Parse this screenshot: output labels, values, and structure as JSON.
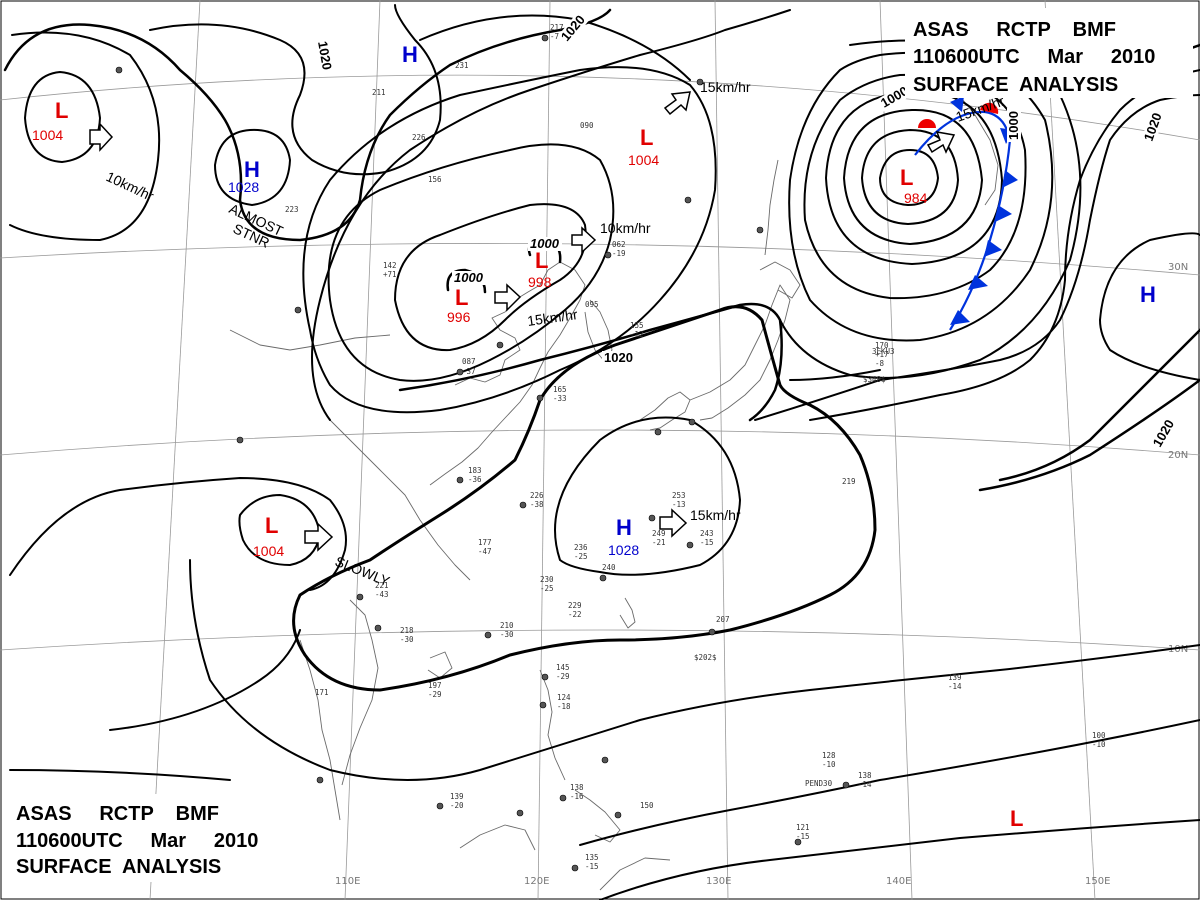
{
  "header_top": {
    "l1": "ASAS     RCTP    BMF",
    "l2": "110600UTC     Mar     2010",
    "l3": "SURFACE  ANALYSIS"
  },
  "header_bottom": {
    "l1": "ASAS     RCTP    BMF",
    "l2": "110600UTC     Mar     2010",
    "l3": "SURFACE  ANALYSIS"
  },
  "colors": {
    "low": "#e00000",
    "high": "#0000cc",
    "cold_front": "#0033dd",
    "warm_front": "#ee0000"
  },
  "lon_labels": [
    "110E",
    "120E",
    "130E",
    "140E",
    "150E"
  ],
  "lat_labels": [
    "30N",
    "20N",
    "10N"
  ],
  "pressure_centers": [
    {
      "type": "L",
      "value": "1004"
    },
    {
      "type": "H",
      "value": "1028"
    },
    {
      "type": "H",
      "value": ""
    },
    {
      "type": "L",
      "value": "1004"
    },
    {
      "type": "L",
      "value": "996"
    },
    {
      "type": "L",
      "value": "998"
    },
    {
      "type": "L",
      "value": "984"
    },
    {
      "type": "H",
      "value": ""
    },
    {
      "type": "L",
      "value": "1004"
    },
    {
      "type": "H",
      "value": "1028"
    },
    {
      "type": "L",
      "value": ""
    }
  ],
  "isobar_labels": [
    "1020",
    "1020",
    "1020",
    "1000",
    "1000",
    "1000",
    "1020",
    "1020",
    "1000"
  ],
  "motions": [
    "10km/hr",
    "15km/hr",
    "10km/hr",
    "15km/hr",
    "15km/hr",
    "SLOWLY",
    "15km/hr"
  ],
  "annotations": {
    "stnr_1": "ALMOST",
    "stnr_2": "STNR"
  },
  "station_texts": [
    "217",
    "-7",
    "231",
    "211",
    "226",
    "156",
    "223",
    "142",
    "+71",
    "090",
    "062",
    "-19",
    "095",
    "087",
    "-37",
    "165",
    "-33",
    "155",
    "-12",
    "183",
    "-36",
    "226",
    "-38",
    "177",
    "-47",
    "236",
    "-25",
    "240",
    "230",
    "-25",
    "229",
    "-22",
    "221",
    "-43",
    "218",
    "-30",
    "197",
    "-29",
    "210",
    "-30",
    "253",
    "-13",
    "249",
    "-21",
    "243",
    "-15",
    "207",
    "$202$",
    "145",
    "-29",
    "124",
    "-18",
    "138",
    "-16",
    "139",
    "-20",
    "150",
    "135",
    "-15",
    "171",
    "170",
    "+17",
    "-8",
    "$348$",
    "219",
    "139",
    "-14",
    "100",
    "-10",
    "121",
    "-15",
    "PEND30",
    "138",
    "-14",
    "3EKU3",
    "128",
    "-10"
  ]
}
